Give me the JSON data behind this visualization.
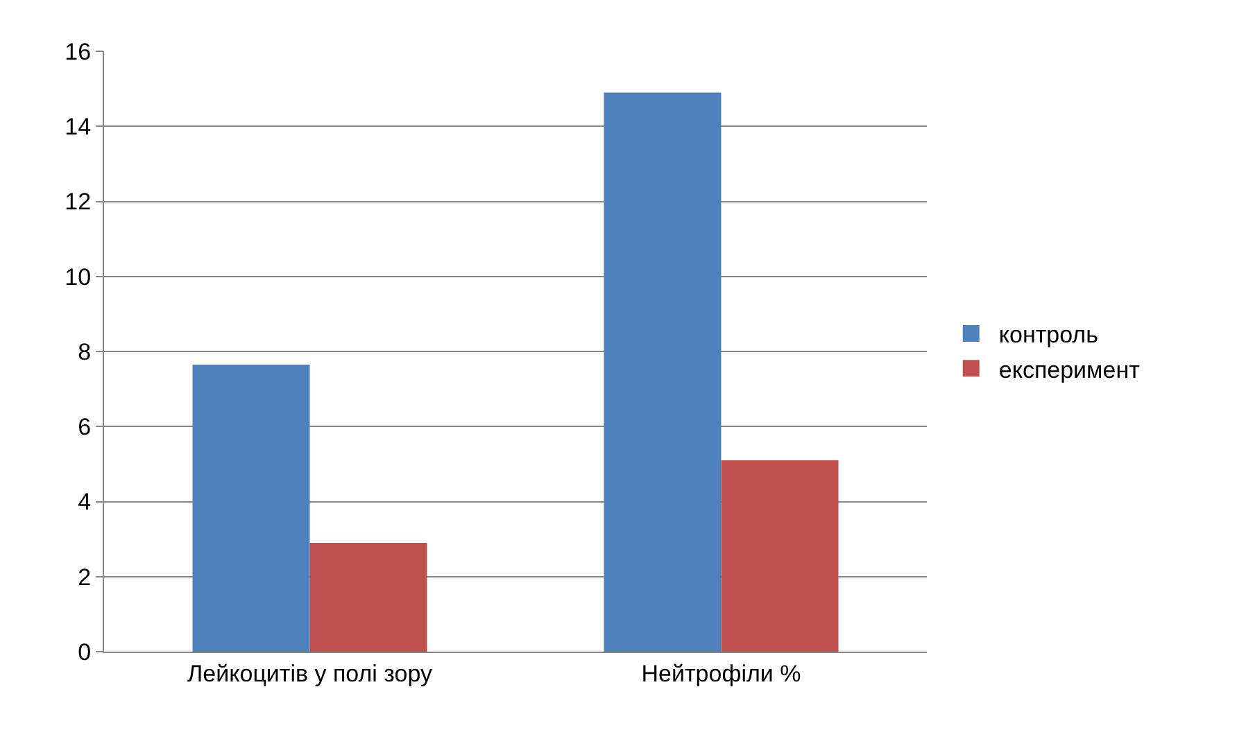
{
  "chart_data": {
    "type": "bar",
    "categories": [
      "Лейкоцитів у полі зору",
      "Нейтрофіли %"
    ],
    "series": [
      {
        "name": "контроль",
        "color": "#4f81bd",
        "values": [
          7.65,
          14.9
        ]
      },
      {
        "name": "експеримент",
        "color": "#c0504d",
        "values": [
          2.9,
          5.1
        ]
      }
    ],
    "ylim": [
      0,
      16
    ],
    "yticks": [
      0,
      2,
      4,
      6,
      8,
      10,
      12,
      14,
      16
    ],
    "grid": "y",
    "legend": "right"
  }
}
